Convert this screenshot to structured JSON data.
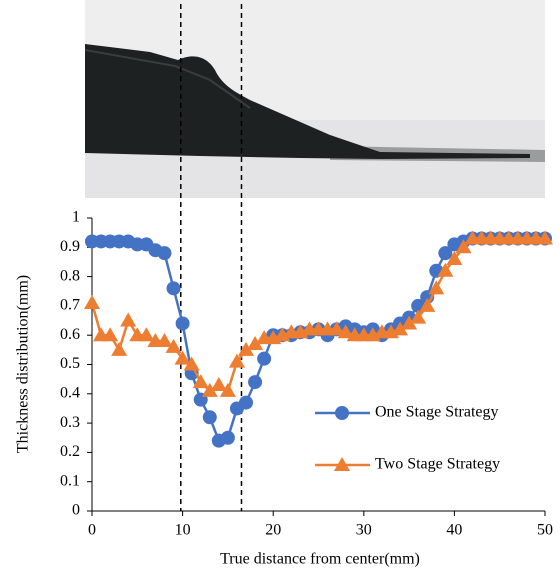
{
  "chart_data": {
    "type": "line",
    "x_label": "True distance from center(mm)",
    "y_label": "Thickness distribution(mm)",
    "x": [
      0,
      1,
      2,
      3,
      4,
      5,
      6,
      7,
      8,
      9,
      10,
      11,
      12,
      13,
      14,
      15,
      16,
      17,
      18,
      19,
      20,
      21,
      22,
      23,
      24,
      25,
      26,
      27,
      28,
      29,
      30,
      31,
      32,
      33,
      34,
      35,
      36,
      37,
      38,
      39,
      40,
      41,
      42,
      43,
      44,
      45,
      46,
      47,
      48,
      49,
      50
    ],
    "series": [
      {
        "name": "One Stage Strategy",
        "color": "#4472c4",
        "marker": "circle",
        "values": [
          0.92,
          0.92,
          0.92,
          0.92,
          0.92,
          0.91,
          0.91,
          0.89,
          0.88,
          0.76,
          0.64,
          0.47,
          0.38,
          0.32,
          0.24,
          0.25,
          0.35,
          0.37,
          0.44,
          0.52,
          0.6,
          0.6,
          0.6,
          0.61,
          0.61,
          0.62,
          0.6,
          0.62,
          0.63,
          0.62,
          0.61,
          0.62,
          0.6,
          0.62,
          0.64,
          0.66,
          0.7,
          0.73,
          0.82,
          0.88,
          0.91,
          0.92,
          0.93,
          0.93,
          0.93,
          0.93,
          0.93,
          0.93,
          0.93,
          0.93,
          0.93
        ]
      },
      {
        "name": "Two Stage Strategy",
        "color": "#ed7d31",
        "marker": "triangle",
        "values": [
          0.71,
          0.6,
          0.6,
          0.55,
          0.65,
          0.6,
          0.6,
          0.58,
          0.58,
          0.56,
          0.52,
          0.5,
          0.44,
          0.41,
          0.43,
          0.41,
          0.51,
          0.55,
          0.57,
          0.59,
          0.59,
          0.6,
          0.61,
          0.61,
          0.62,
          0.62,
          0.62,
          0.62,
          0.61,
          0.6,
          0.6,
          0.6,
          0.61,
          0.61,
          0.62,
          0.64,
          0.66,
          0.7,
          0.76,
          0.82,
          0.86,
          0.9,
          0.93,
          0.93,
          0.93,
          0.93,
          0.93,
          0.93,
          0.93,
          0.93,
          0.93
        ]
      }
    ],
    "xlim": [
      0,
      50
    ],
    "xticks": [
      0,
      10,
      20,
      30,
      40,
      50
    ],
    "ylim": [
      0,
      1
    ],
    "yticks": [
      0,
      0.1,
      0.2,
      0.3,
      0.4,
      0.5,
      0.6,
      0.7,
      0.8,
      0.9,
      1
    ],
    "reference_lines": [
      9.8,
      16.5
    ],
    "legend": "lower right",
    "grid": false
  }
}
